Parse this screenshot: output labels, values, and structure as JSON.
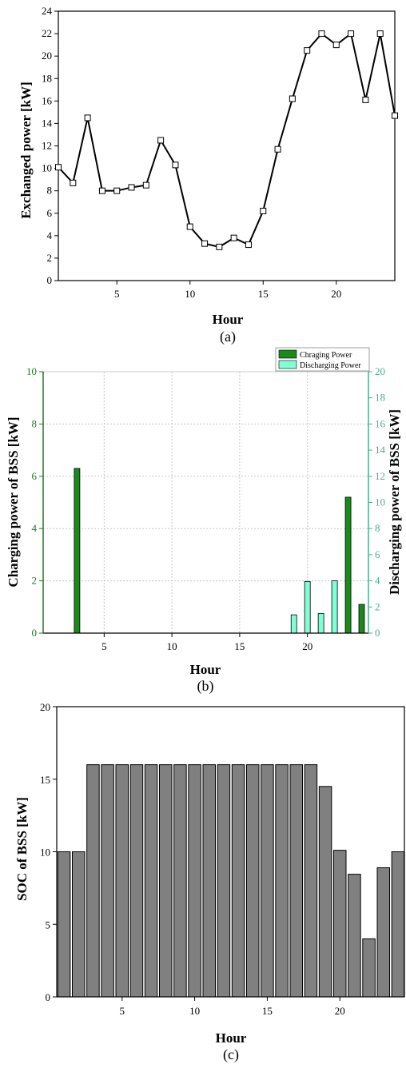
{
  "chart_data": [
    {
      "type": "line",
      "caption": "(a)",
      "xlabel": "Hour",
      "ylabel": "Exchanged power [kW]",
      "xlim": [
        1,
        24
      ],
      "ylim": [
        0,
        24
      ],
      "xticks": [
        5,
        10,
        15,
        20
      ],
      "yticks": [
        0,
        2,
        4,
        6,
        8,
        10,
        12,
        14,
        16,
        18,
        20,
        22,
        24
      ],
      "marker": "open-square",
      "color": "#000000",
      "x": [
        1,
        2,
        3,
        4,
        5,
        6,
        7,
        8,
        9,
        10,
        11,
        12,
        13,
        14,
        15,
        16,
        17,
        18,
        19,
        20,
        21,
        22,
        23,
        24
      ],
      "y": [
        10.1,
        8.7,
        14.5,
        8.0,
        8.0,
        8.3,
        8.5,
        12.5,
        10.3,
        4.8,
        3.3,
        3.0,
        3.8,
        3.2,
        6.2,
        11.7,
        16.2,
        20.5,
        22.0,
        21.0,
        22.0,
        16.1,
        22.0,
        14.7
      ]
    },
    {
      "type": "bar",
      "caption": "(b)",
      "xlabel": "Hour",
      "ylabel": "Charging power of BSS [kW]",
      "y2label": "Discharging power of BSS [kW]",
      "xlim": [
        0.5,
        24.5
      ],
      "ylim": [
        0,
        10
      ],
      "y2lim": [
        0,
        20
      ],
      "xticks": [
        5,
        10,
        15,
        20
      ],
      "yticks": [
        0,
        2,
        4,
        6,
        8,
        10
      ],
      "y2ticks": [
        0,
        2,
        4,
        6,
        8,
        10,
        12,
        14,
        16,
        18,
        20
      ],
      "grid": true,
      "legend_position": "top-right",
      "left_axis_color": "#1e7a1e",
      "right_axis_color": "#4caf8a",
      "series": [
        {
          "name": "Chraging Power",
          "axis": "left",
          "color": "#1a8a1a",
          "x": [
            3,
            23,
            24
          ],
          "values": [
            6.3,
            5.2,
            1.1
          ]
        },
        {
          "name": "Discharging Power",
          "axis": "right",
          "color": "#7fffd4",
          "x": [
            19,
            20,
            21,
            22
          ],
          "values": [
            1.4,
            3.95,
            1.5,
            4.0
          ]
        }
      ]
    },
    {
      "type": "bar",
      "caption": "(c)",
      "xlabel": "Hour",
      "ylabel": "SOC of BSS [kW]",
      "xlim": [
        0.5,
        24.5
      ],
      "ylim": [
        0,
        20
      ],
      "xticks": [
        5,
        10,
        15,
        20
      ],
      "yticks": [
        0,
        5,
        10,
        15,
        20
      ],
      "color": "#808080",
      "categories": [
        1,
        2,
        3,
        4,
        5,
        6,
        7,
        8,
        9,
        10,
        11,
        12,
        13,
        14,
        15,
        16,
        17,
        18,
        19,
        20,
        21,
        22,
        23,
        24
      ],
      "values": [
        10,
        10,
        16,
        16,
        16,
        16,
        16,
        16,
        16,
        16,
        16,
        16,
        16,
        16,
        16,
        16,
        16,
        16,
        14.5,
        10.1,
        8.45,
        4.0,
        8.9,
        10.0
      ]
    }
  ]
}
